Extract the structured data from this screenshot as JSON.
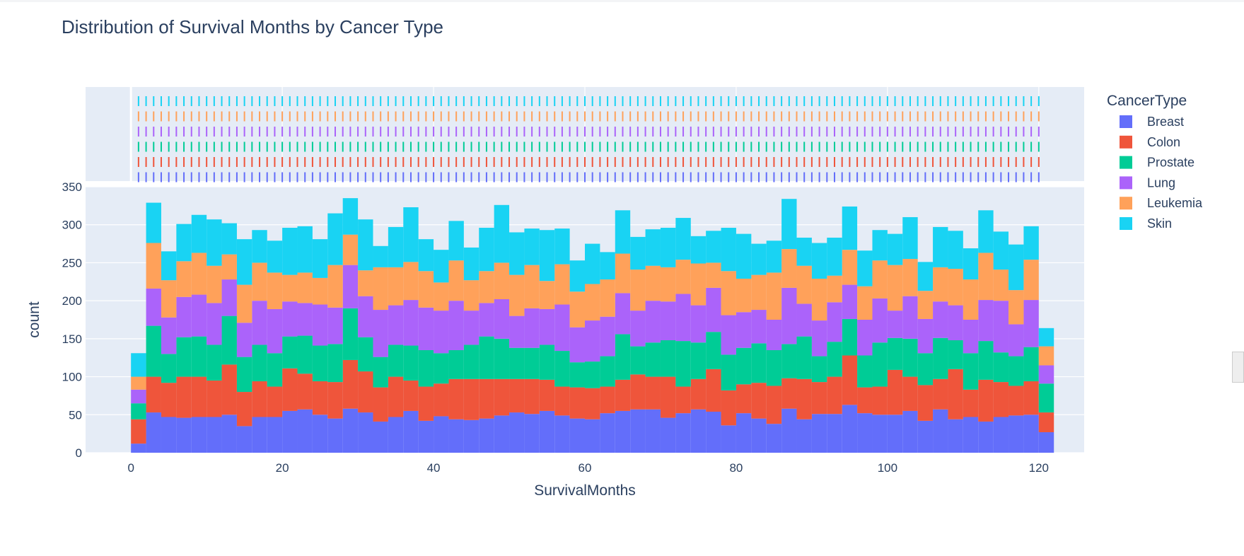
{
  "chart_data": {
    "type": "bar",
    "title": "Distribution of Survival Months by Cancer Type",
    "xlabel": "SurvivalMonths",
    "ylabel": "count",
    "xlim": [
      -6,
      126
    ],
    "ylim": [
      0,
      350
    ],
    "x_ticks": [
      0,
      20,
      40,
      60,
      80,
      100,
      120
    ],
    "y_ticks": [
      0,
      50,
      100,
      150,
      200,
      250,
      300,
      350
    ],
    "bin_width": 2,
    "bin_starts": [
      0,
      2,
      4,
      6,
      8,
      10,
      12,
      14,
      16,
      18,
      20,
      22,
      24,
      26,
      28,
      30,
      32,
      34,
      36,
      38,
      40,
      42,
      44,
      46,
      48,
      50,
      52,
      54,
      56,
      58,
      60,
      62,
      64,
      66,
      68,
      70,
      72,
      74,
      76,
      78,
      80,
      82,
      84,
      86,
      88,
      90,
      92,
      94,
      96,
      98,
      100,
      102,
      104,
      106,
      108,
      110,
      112,
      114,
      116,
      118,
      120
    ],
    "barmode": "stack",
    "marginal": "rug",
    "grid": true,
    "legend_title": "CancerType",
    "legend_position": "right",
    "series": [
      {
        "name": "Breast",
        "color": "#636efa",
        "values": [
          12,
          53,
          47,
          46,
          47,
          47,
          50,
          35,
          47,
          47,
          55,
          57,
          50,
          45,
          58,
          53,
          41,
          47,
          55,
          42,
          48,
          44,
          43,
          45,
          49,
          53,
          51,
          55,
          49,
          45,
          44,
          52,
          55,
          57,
          57,
          46,
          52,
          57,
          54,
          36,
          52,
          45,
          38,
          58,
          44,
          51,
          51,
          63,
          52,
          50,
          50,
          55,
          42,
          57,
          44,
          47,
          41,
          47,
          49,
          50,
          27
        ]
      },
      {
        "name": "Colon",
        "color": "#ef553b",
        "values": [
          32,
          47,
          45,
          54,
          53,
          48,
          66,
          45,
          47,
          40,
          56,
          47,
          44,
          48,
          64,
          54,
          45,
          53,
          40,
          45,
          43,
          53,
          54,
          52,
          48,
          44,
          46,
          41,
          38,
          41,
          41,
          35,
          41,
          46,
          43,
          54,
          35,
          40,
          56,
          46,
          38,
          47,
          50,
          40,
          53,
          42,
          49,
          65,
          34,
          37,
          59,
          45,
          47,
          40,
          66,
          36,
          55,
          46,
          39,
          44,
          26
        ]
      },
      {
        "name": "Prostate",
        "color": "#00cc96",
        "values": [
          21,
          67,
          38,
          52,
          53,
          47,
          64,
          46,
          48,
          44,
          42,
          50,
          47,
          50,
          68,
          45,
          40,
          42,
          46,
          48,
          40,
          38,
          45,
          56,
          53,
          41,
          41,
          46,
          47,
          33,
          35,
          40,
          60,
          37,
          45,
          48,
          60,
          48,
          49,
          47,
          48,
          52,
          47,
          45,
          56,
          34,
          46,
          48,
          42,
          58,
          42,
          50,
          42,
          54,
          38,
          48,
          51,
          39,
          39,
          45,
          38
        ]
      },
      {
        "name": "Lung",
        "color": "#ab63fa",
        "values": [
          18,
          49,
          48,
          53,
          55,
          55,
          48,
          45,
          58,
          58,
          46,
          43,
          54,
          48,
          57,
          54,
          62,
          52,
          60,
          56,
          56,
          65,
          45,
          44,
          52,
          42,
          52,
          47,
          61,
          46,
          54,
          52,
          54,
          47,
          55,
          51,
          62,
          49,
          58,
          52,
          47,
          44,
          40,
          74,
          43,
          47,
          52,
          45,
          47,
          58,
          36,
          56,
          45,
          48,
          46,
          44,
          54,
          68,
          42,
          62,
          24
        ]
      },
      {
        "name": "Leukemia",
        "color": "#ffa15a",
        "values": [
          17,
          60,
          49,
          47,
          55,
          49,
          33,
          50,
          50,
          48,
          35,
          40,
          35,
          56,
          40,
          34,
          56,
          50,
          50,
          48,
          37,
          53,
          40,
          42,
          48,
          54,
          57,
          37,
          53,
          47,
          48,
          49,
          52,
          54,
          46,
          45,
          45,
          55,
          33,
          58,
          44,
          46,
          62,
          51,
          50,
          55,
          35,
          46,
          44,
          50,
          60,
          49,
          37,
          45,
          48,
          53,
          62,
          41,
          45,
          53,
          25
        ]
      },
      {
        "name": "Skin",
        "color": "#19d3f3",
        "values": [
          31,
          53,
          38,
          49,
          50,
          61,
          41,
          60,
          43,
          42,
          62,
          61,
          51,
          68,
          48,
          67,
          28,
          53,
          72,
          42,
          43,
          52,
          43,
          57,
          76,
          56,
          48,
          67,
          47,
          41,
          53,
          36,
          57,
          43,
          48,
          52,
          55,
          36,
          42,
          57,
          59,
          41,
          42,
          66,
          37,
          47,
          50,
          57,
          47,
          40,
          41,
          55,
          38,
          53,
          50,
          41,
          56,
          50,
          60,
          44,
          24
        ]
      }
    ]
  }
}
